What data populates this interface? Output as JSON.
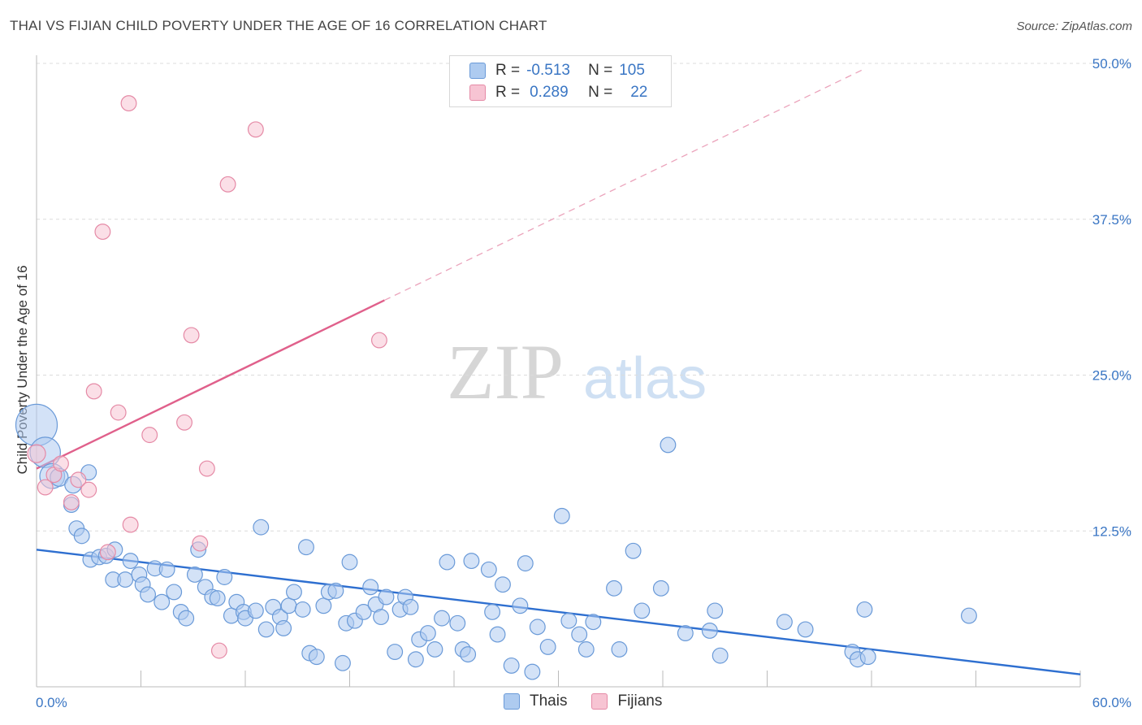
{
  "title": "THAI VS FIJIAN CHILD POVERTY UNDER THE AGE OF 16 CORRELATION CHART",
  "source": "Source: ZipAtlas.com",
  "watermark": {
    "zip": "ZIP",
    "atlas": "atlas"
  },
  "legend": {
    "rows": [
      {
        "r_label": "R =",
        "r_value": "-0.513",
        "n_label": "N =",
        "n_value": "105",
        "color": "#aecbf0",
        "border": "#6a9ad8"
      },
      {
        "r_label": "R =",
        "r_value": "0.289",
        "n_label": "N =",
        "n_value": "22",
        "color": "#f7c4d3",
        "border": "#e58aa6"
      }
    ]
  },
  "bottom_legend": [
    {
      "label": "Thais",
      "color": "#aecbf0",
      "border": "#6a9ad8"
    },
    {
      "label": "Fijians",
      "color": "#f7c4d3",
      "border": "#e58aa6"
    }
  ],
  "chart_data": {
    "type": "scatter",
    "title": "THAI VS FIJIAN CHILD POVERTY UNDER THE AGE OF 16 CORRELATION CHART",
    "xlabel": "",
    "ylabel": "Child Poverty Under the Age of 16",
    "xlim": [
      0,
      60
    ],
    "ylim": [
      0,
      50
    ],
    "x_tick_labels": [
      "0.0%",
      "60.0%"
    ],
    "y_ticks": [
      12.5,
      25.0,
      37.5,
      50.0
    ],
    "y_tick_labels": [
      "12.5%",
      "25.0%",
      "37.5%",
      "50.0%"
    ],
    "grid": true,
    "legend_position": "top-center",
    "series": [
      {
        "name": "Thais",
        "color": "#6a9ad8",
        "fill": "#aecbf0",
        "trend": {
          "x0": 0,
          "y0": 11.0,
          "x1": 60,
          "y1": 1.0,
          "style": "solid"
        },
        "points": [
          [
            0.0,
            21.0,
            3
          ],
          [
            0.5,
            18.8,
            2.2
          ],
          [
            0.9,
            16.9,
            1.8
          ],
          [
            1.3,
            16.8,
            1.3
          ],
          [
            2.1,
            16.2,
            1.2
          ],
          [
            3.0,
            17.2,
            1.1
          ],
          [
            2.0,
            14.6,
            1.1
          ],
          [
            2.3,
            12.7,
            1.1
          ],
          [
            2.6,
            12.1,
            1.1
          ],
          [
            3.1,
            10.2,
            1.1
          ],
          [
            3.6,
            10.4,
            1.1
          ],
          [
            4.0,
            10.5,
            1.1
          ],
          [
            4.5,
            11.0,
            1.1
          ],
          [
            4.4,
            8.6,
            1.1
          ],
          [
            5.1,
            8.6,
            1.1
          ],
          [
            5.4,
            10.1,
            1.1
          ],
          [
            5.9,
            9.0,
            1.1
          ],
          [
            6.1,
            8.2,
            1.1
          ],
          [
            6.4,
            7.4,
            1.1
          ],
          [
            6.8,
            9.5,
            1.1
          ],
          [
            7.2,
            6.8,
            1.1
          ],
          [
            7.5,
            9.4,
            1.1
          ],
          [
            7.9,
            7.6,
            1.1
          ],
          [
            8.3,
            6.0,
            1.1
          ],
          [
            8.6,
            5.5,
            1.1
          ],
          [
            9.1,
            9.0,
            1.1
          ],
          [
            9.3,
            11.0,
            1.1
          ],
          [
            9.7,
            8.0,
            1.1
          ],
          [
            10.1,
            7.2,
            1.1
          ],
          [
            10.4,
            7.1,
            1.1
          ],
          [
            10.8,
            8.8,
            1.1
          ],
          [
            11.2,
            5.7,
            1.1
          ],
          [
            11.5,
            6.8,
            1.1
          ],
          [
            11.9,
            6.0,
            1.1
          ],
          [
            12.0,
            5.5,
            1.1
          ],
          [
            12.6,
            6.1,
            1.1
          ],
          [
            12.9,
            12.8,
            1.1
          ],
          [
            13.2,
            4.6,
            1.1
          ],
          [
            13.6,
            6.4,
            1.1
          ],
          [
            14.0,
            5.6,
            1.1
          ],
          [
            14.2,
            4.7,
            1.1
          ],
          [
            14.5,
            6.5,
            1.1
          ],
          [
            14.8,
            7.6,
            1.1
          ],
          [
            15.3,
            6.2,
            1.1
          ],
          [
            15.5,
            11.2,
            1.1
          ],
          [
            15.7,
            2.7,
            1.1
          ],
          [
            16.1,
            2.4,
            1.1
          ],
          [
            16.5,
            6.5,
            1.1
          ],
          [
            16.8,
            7.6,
            1.1
          ],
          [
            17.2,
            7.7,
            1.1
          ],
          [
            17.6,
            1.9,
            1.1
          ],
          [
            17.8,
            5.1,
            1.1
          ],
          [
            18.0,
            10.0,
            1.1
          ],
          [
            18.3,
            5.3,
            1.1
          ],
          [
            18.8,
            6.0,
            1.1
          ],
          [
            19.2,
            8.0,
            1.1
          ],
          [
            19.5,
            6.6,
            1.1
          ],
          [
            19.8,
            5.6,
            1.1
          ],
          [
            20.1,
            7.2,
            1.1
          ],
          [
            20.6,
            2.8,
            1.1
          ],
          [
            20.9,
            6.2,
            1.1
          ],
          [
            21.2,
            7.2,
            1.1
          ],
          [
            21.5,
            6.4,
            1.1
          ],
          [
            21.8,
            2.2,
            1.1
          ],
          [
            22.0,
            3.8,
            1.1
          ],
          [
            22.5,
            4.3,
            1.1
          ],
          [
            22.9,
            3.0,
            1.1
          ],
          [
            23.3,
            5.5,
            1.1
          ],
          [
            23.6,
            10.0,
            1.1
          ],
          [
            24.2,
            5.1,
            1.1
          ],
          [
            24.5,
            3.0,
            1.1
          ],
          [
            24.8,
            2.6,
            1.1
          ],
          [
            25.0,
            10.1,
            1.1
          ],
          [
            26.0,
            9.4,
            1.1
          ],
          [
            26.2,
            6.0,
            1.1
          ],
          [
            26.5,
            4.2,
            1.1
          ],
          [
            26.8,
            8.2,
            1.1
          ],
          [
            27.3,
            1.7,
            1.1
          ],
          [
            27.8,
            6.5,
            1.1
          ],
          [
            28.1,
            9.9,
            1.1
          ],
          [
            28.5,
            1.2,
            1.1
          ],
          [
            28.8,
            4.8,
            1.1
          ],
          [
            29.4,
            3.2,
            1.1
          ],
          [
            30.2,
            13.7,
            1.1
          ],
          [
            30.6,
            5.3,
            1.1
          ],
          [
            31.2,
            4.2,
            1.1
          ],
          [
            31.6,
            3.0,
            1.1
          ],
          [
            32.0,
            5.2,
            1.1
          ],
          [
            33.2,
            7.9,
            1.1
          ],
          [
            33.5,
            3.0,
            1.1
          ],
          [
            34.3,
            10.9,
            1.1
          ],
          [
            34.8,
            6.1,
            1.1
          ],
          [
            35.9,
            7.9,
            1.1
          ],
          [
            36.3,
            19.4,
            1.1
          ],
          [
            37.3,
            4.3,
            1.1
          ],
          [
            38.7,
            4.5,
            1.1
          ],
          [
            39.0,
            6.1,
            1.1
          ],
          [
            39.3,
            2.5,
            1.1
          ],
          [
            43.0,
            5.2,
            1.1
          ],
          [
            44.2,
            4.6,
            1.1
          ],
          [
            46.9,
            2.8,
            1.1
          ],
          [
            47.2,
            2.2,
            1.1
          ],
          [
            47.6,
            6.2,
            1.1
          ],
          [
            47.8,
            2.4,
            1.1
          ],
          [
            53.6,
            5.7,
            1.1
          ]
        ]
      },
      {
        "name": "Fijians",
        "color": "#e58aa6",
        "fill": "#f7c4d3",
        "trend": {
          "x0": 0,
          "y0": 17.5,
          "x1": 20,
          "y1": 31.0,
          "dash_to_x": 47.5,
          "dash_to_y": 49.5,
          "style": "solid-then-dashed"
        },
        "points": [
          [
            0.0,
            18.7,
            1.3
          ],
          [
            0.5,
            16.0,
            1.1
          ],
          [
            1.0,
            17.0,
            1.1
          ],
          [
            1.4,
            17.9,
            1.1
          ],
          [
            2.0,
            14.8,
            1.1
          ],
          [
            2.4,
            16.6,
            1.1
          ],
          [
            3.0,
            15.8,
            1.1
          ],
          [
            3.3,
            23.7,
            1.1
          ],
          [
            3.8,
            36.5,
            1.1
          ],
          [
            4.1,
            10.8,
            1.1
          ],
          [
            4.7,
            22.0,
            1.1
          ],
          [
            5.3,
            46.8,
            1.1
          ],
          [
            5.4,
            13.0,
            1.1
          ],
          [
            6.5,
            20.2,
            1.1
          ],
          [
            8.5,
            21.2,
            1.1
          ],
          [
            8.9,
            28.2,
            1.1
          ],
          [
            9.4,
            11.5,
            1.1
          ],
          [
            9.8,
            17.5,
            1.1
          ],
          [
            10.5,
            2.9,
            1.1
          ],
          [
            11.0,
            40.3,
            1.1
          ],
          [
            12.6,
            44.7,
            1.1
          ],
          [
            19.7,
            27.8,
            1.1
          ]
        ]
      }
    ]
  }
}
